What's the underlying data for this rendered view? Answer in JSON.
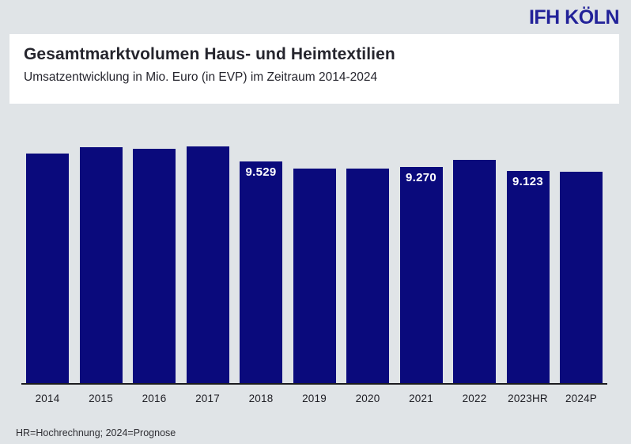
{
  "logo": {
    "text": "IFH KÖLN"
  },
  "header": {
    "title": "Gesamtmarktvolumen Haus- und Heimtextilien",
    "subtitle": "Umsatzentwicklung in Mio. Euro (in EVP) im Zeitraum 2014-2024"
  },
  "footnote": "HR=Hochrechnung; 2024=Prognose",
  "colors": {
    "background": "#E0E4E7",
    "bar": "#0A0A7C",
    "logo": "#222299",
    "title": "#25252D",
    "bar_label_text": "#FFFFFF"
  },
  "chart_data": {
    "type": "bar",
    "title": "Gesamtmarktvolumen Haus- und Heimtextilien",
    "subtitle": "Umsatzentwicklung in Mio. Euro (in EVP) im Zeitraum 2014-2024",
    "categories": [
      "2014",
      "2015",
      "2016",
      "2017",
      "2018",
      "2019",
      "2020",
      "2021",
      "2022",
      "2023HR",
      "2024P"
    ],
    "values": [
      9860,
      10130,
      10060,
      10160,
      9529,
      9210,
      9210,
      9270,
      9580,
      9123,
      9060
    ],
    "data_labels": [
      "",
      "",
      "",
      "",
      "9.529",
      "",
      "",
      "9.270",
      "",
      "9.123",
      ""
    ],
    "xlabel": "",
    "ylabel": "",
    "ylim": [
      0,
      10500
    ],
    "grid": false,
    "legend": false
  }
}
